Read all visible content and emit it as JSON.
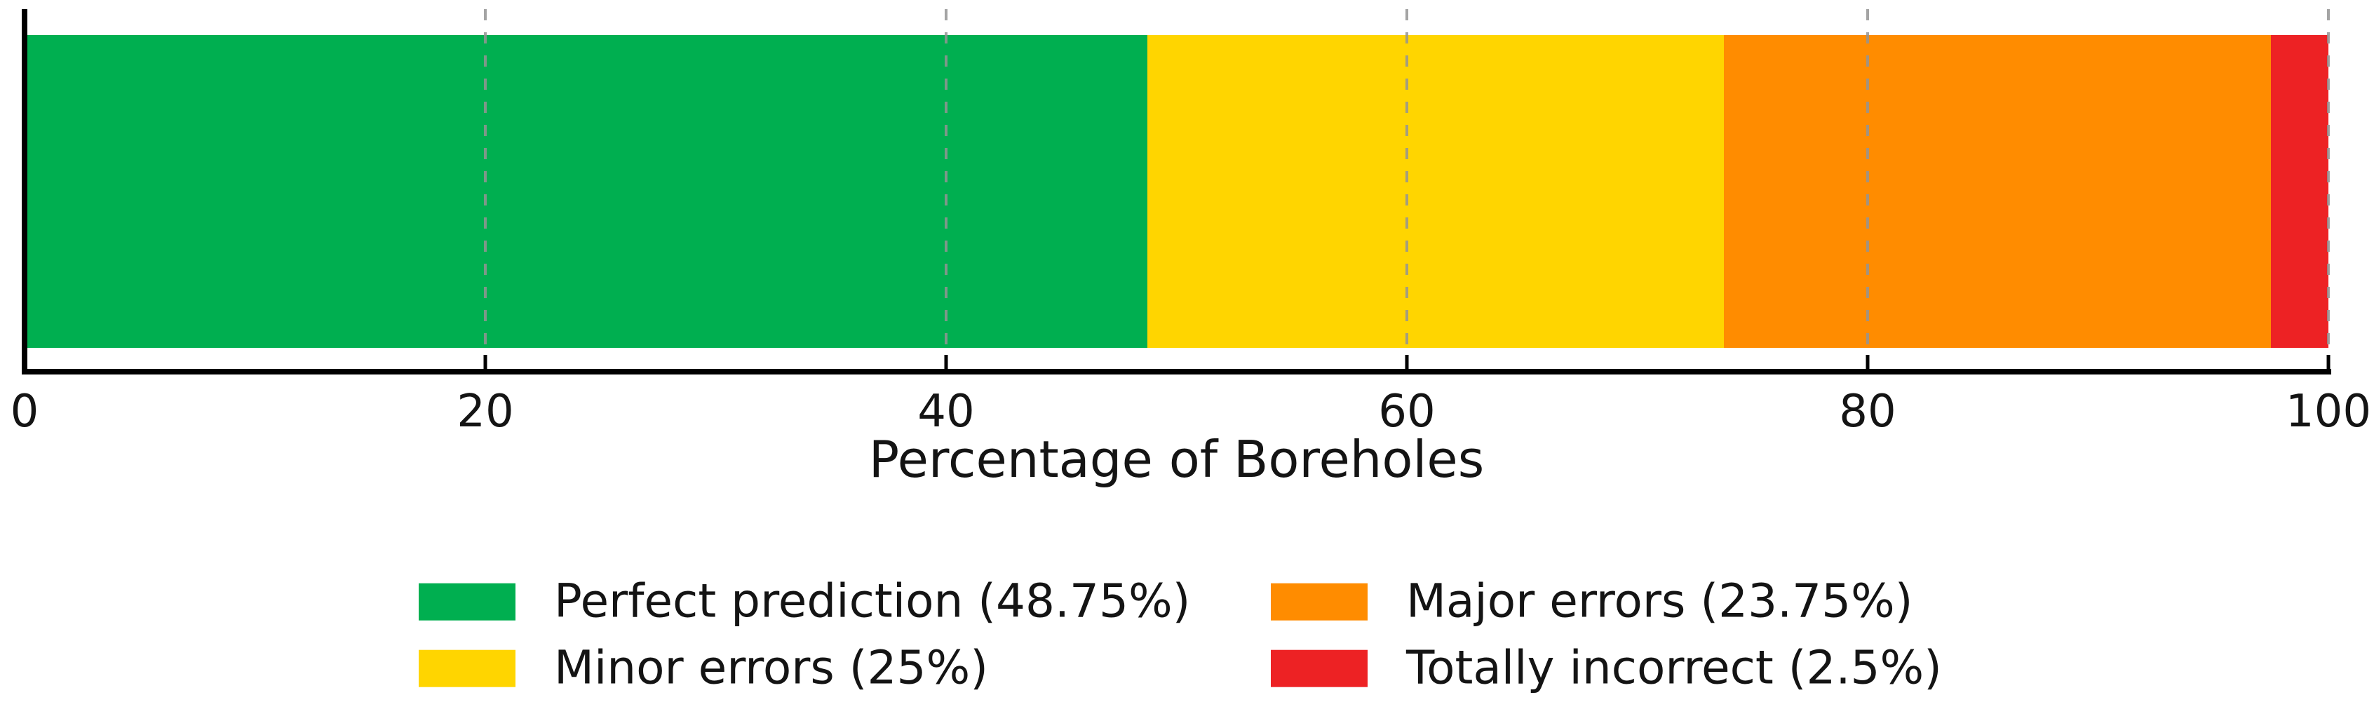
{
  "figure": {
    "background": "#ffffff",
    "text_color": "#141414"
  },
  "chart_data": {
    "type": "bar",
    "orientation": "horizontal",
    "stacked": true,
    "categories": [
      "Boreholes"
    ],
    "series": [
      {
        "name": "Perfect prediction",
        "value": 48.75,
        "color": "#00AF50",
        "legend_label": "Perfect prediction (48.75%)"
      },
      {
        "name": "Minor errors",
        "value": 25,
        "color": "#FFD500",
        "legend_label": "Minor errors (25%)"
      },
      {
        "name": "Major errors",
        "value": 23.75,
        "color": "#FF8C00",
        "legend_label": "Major errors (23.75%)"
      },
      {
        "name": "Totally incorrect",
        "value": 2.5,
        "color": "#ED2224",
        "legend_label": "Totally incorrect (2.5%)"
      }
    ],
    "title": "",
    "xlabel": "Percentage of Boreholes",
    "ylabel": "",
    "xlim": [
      0,
      100
    ],
    "xticks": [
      0,
      20,
      40,
      60,
      80,
      100
    ],
    "grid": {
      "axis": "x",
      "style": "dashed",
      "color": "#949494",
      "on": true,
      "above_bars": true
    },
    "legend": {
      "position": "below-center",
      "columns": 2,
      "order": "column-major"
    }
  }
}
